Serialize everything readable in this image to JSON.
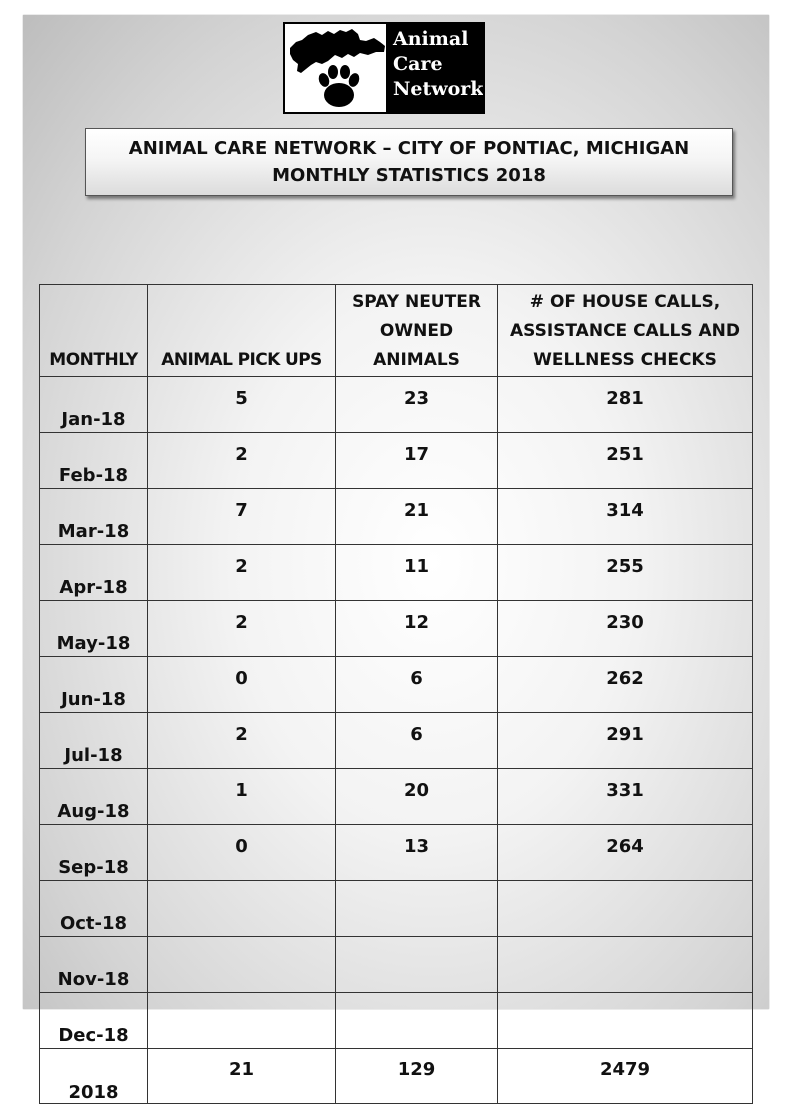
{
  "logo": {
    "lines": [
      "Animal",
      "Care",
      "Network"
    ],
    "icons": [
      "michigan-map-icon",
      "paw-print-icon"
    ]
  },
  "title": {
    "line1": "ANIMAL CARE NETWORK – CITY OF PONTIAC, MICHIGAN",
    "line2": "MONTHLY STATISTICS 2018"
  },
  "table": {
    "headers": {
      "monthly": "MONTHLY",
      "pickups": "ANIMAL PICK UPS",
      "spay_neuter": [
        "SPAY NEUTER",
        "OWNED",
        "ANIMALS"
      ],
      "house_calls": [
        "# OF HOUSE CALLS,",
        "ASSISTANCE CALLS AND",
        "WELLNESS CHECKS"
      ]
    },
    "rows": [
      {
        "month": "Jan-18",
        "pickups": "5",
        "spay": "23",
        "calls": "281"
      },
      {
        "month": "Feb-18",
        "pickups": "2",
        "spay": "17",
        "calls": "251"
      },
      {
        "month": "Mar-18",
        "pickups": "7",
        "spay": "21",
        "calls": "314"
      },
      {
        "month": "Apr-18",
        "pickups": "2",
        "spay": "11",
        "calls": "255"
      },
      {
        "month": "May-18",
        "pickups": "2",
        "spay": "12",
        "calls": "230"
      },
      {
        "month": "Jun-18",
        "pickups": "0",
        "spay": "6",
        "calls": "262"
      },
      {
        "month": "Jul-18",
        "pickups": "2",
        "spay": "6",
        "calls": "291"
      },
      {
        "month": "Aug-18",
        "pickups": "1",
        "spay": "20",
        "calls": "331"
      },
      {
        "month": "Sep-18",
        "pickups": "0",
        "spay": "13",
        "calls": "264"
      },
      {
        "month": "Oct-18",
        "pickups": "",
        "spay": "",
        "calls": ""
      },
      {
        "month": "Nov-18",
        "pickups": "",
        "spay": "",
        "calls": ""
      },
      {
        "month": "Dec-18",
        "pickups": "",
        "spay": "",
        "calls": ""
      }
    ],
    "total": {
      "label": "2018",
      "pickups": "21",
      "spay": "129",
      "calls": "2479"
    }
  }
}
